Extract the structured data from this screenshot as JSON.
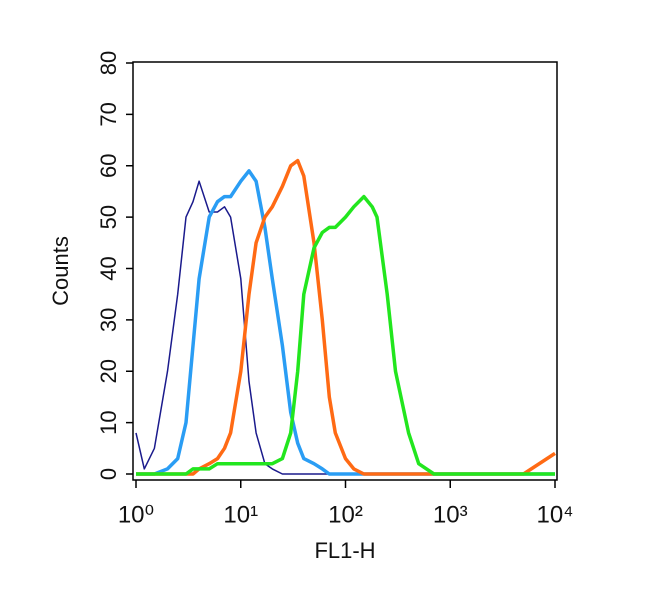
{
  "chart_data": {
    "type": "line",
    "x_label": "FL1-H",
    "y_label": "Counts",
    "log_x": true,
    "xlim": [
      1,
      10000
    ],
    "xticks": [
      {
        "value": 1,
        "label": "10⁰"
      },
      {
        "value": 10,
        "label": "10¹"
      },
      {
        "value": 100,
        "label": "10²"
      },
      {
        "value": 1000,
        "label": "10³"
      },
      {
        "value": 10000,
        "label": "10⁴"
      }
    ],
    "ylim": [
      0,
      80
    ],
    "yticks": [
      0,
      10,
      20,
      30,
      40,
      50,
      60,
      70,
      80
    ],
    "x": [
      1,
      1.2,
      1.5,
      2,
      2.5,
      3,
      3.5,
      4,
      5,
      6,
      7,
      8,
      10,
      12,
      14,
      17,
      20,
      25,
      30,
      35,
      40,
      50,
      60,
      70,
      80,
      100,
      120,
      150,
      180,
      200,
      250,
      300,
      400,
      500,
      700,
      1000,
      2000,
      5000,
      10000
    ],
    "series": [
      {
        "color": "#1a1a8c",
        "values": [
          8,
          1,
          5,
          20,
          35,
          50,
          53,
          57,
          51,
          51,
          52,
          50,
          38,
          18,
          8,
          2,
          1,
          0,
          0,
          0,
          0,
          0,
          0,
          0,
          0,
          0,
          0,
          0,
          0,
          0,
          0,
          0,
          0,
          0,
          0,
          0,
          0,
          0,
          0
        ]
      },
      {
        "color": "#2a9df4",
        "values": [
          0,
          0,
          0,
          1,
          3,
          10,
          25,
          38,
          50,
          53,
          54,
          54,
          57,
          59,
          57,
          48,
          38,
          25,
          12,
          6,
          3,
          2,
          1,
          0,
          0,
          0,
          0,
          0,
          0,
          0,
          0,
          0,
          0,
          0,
          0,
          0,
          0,
          0,
          0
        ]
      },
      {
        "color": "#ff6a14",
        "values": [
          0,
          0,
          0,
          0,
          0,
          0,
          0,
          1,
          2,
          3,
          5,
          8,
          20,
          35,
          45,
          50,
          52,
          56,
          60,
          61,
          58,
          45,
          30,
          15,
          8,
          3,
          1,
          0,
          0,
          0,
          0,
          0,
          0,
          0,
          0,
          0,
          0,
          0,
          4
        ]
      },
      {
        "color": "#22e61e",
        "values": [
          0,
          0,
          0,
          0,
          0,
          0,
          1,
          1,
          1,
          2,
          2,
          2,
          2,
          2,
          2,
          2,
          2,
          3,
          8,
          20,
          35,
          44,
          47,
          48,
          48,
          50,
          52,
          54,
          52,
          50,
          35,
          20,
          8,
          2,
          0,
          0,
          0,
          0,
          0
        ]
      }
    ]
  }
}
